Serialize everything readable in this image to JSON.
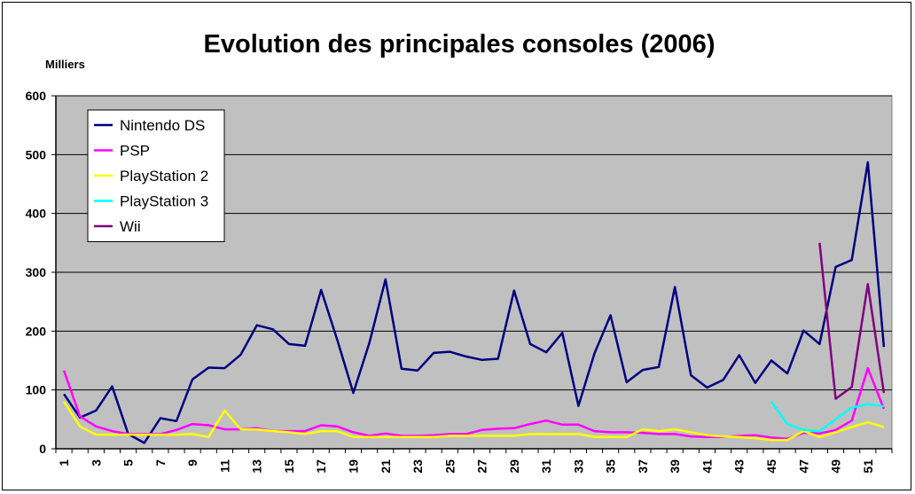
{
  "chart_data": {
    "type": "line",
    "title": "Evolution des principales consoles (2006)",
    "ylabel": "Milliers",
    "xlabel": "",
    "ylim": [
      0,
      600
    ],
    "yticks": [
      0,
      100,
      200,
      300,
      400,
      500,
      600
    ],
    "xticks": [
      "1",
      "3",
      "5",
      "7",
      "9",
      "11",
      "13",
      "15",
      "17",
      "19",
      "21",
      "23",
      "25",
      "27",
      "29",
      "31",
      "33",
      "35",
      "37",
      "39",
      "41",
      "43",
      "45",
      "47",
      "49",
      "51"
    ],
    "x_range": [
      1,
      52
    ],
    "grid": true,
    "plot_background": "#c0c0c0",
    "legend_position": "top-left",
    "series": [
      {
        "name": "Nintendo DS",
        "color": "#000080",
        "x": [
          1,
          2,
          3,
          4,
          5,
          6,
          7,
          8,
          9,
          10,
          11,
          12,
          13,
          14,
          15,
          16,
          17,
          18,
          19,
          20,
          21,
          22,
          23,
          24,
          25,
          26,
          27,
          28,
          29,
          30,
          31,
          32,
          33,
          34,
          35,
          36,
          37,
          38,
          39,
          40,
          41,
          42,
          43,
          44,
          45,
          46,
          47,
          48,
          49,
          50,
          51,
          52
        ],
        "values": [
          93,
          53,
          65,
          106,
          25,
          10,
          52,
          47,
          118,
          138,
          137,
          160,
          210,
          203,
          178,
          175,
          270,
          185,
          95,
          180,
          288,
          136,
          133,
          163,
          165,
          157,
          151,
          153,
          269,
          178,
          164,
          197,
          73,
          162,
          227,
          113,
          134,
          139,
          275,
          125,
          104,
          117,
          159,
          112,
          150,
          128,
          201,
          178,
          309,
          321,
          487,
          173
        ]
      },
      {
        "name": "PSP",
        "color": "#ff00ff",
        "x": [
          1,
          2,
          3,
          4,
          5,
          6,
          7,
          8,
          9,
          10,
          11,
          12,
          13,
          14,
          15,
          16,
          17,
          18,
          19,
          20,
          21,
          22,
          23,
          24,
          25,
          26,
          27,
          28,
          29,
          30,
          31,
          32,
          33,
          34,
          35,
          36,
          37,
          38,
          39,
          40,
          41,
          42,
          43,
          44,
          45,
          46,
          47,
          48,
          49,
          50,
          51,
          52
        ],
        "values": [
          133,
          55,
          38,
          30,
          25,
          25,
          25,
          32,
          42,
          40,
          33,
          33,
          35,
          30,
          30,
          30,
          40,
          38,
          28,
          22,
          26,
          22,
          22,
          23,
          25,
          25,
          32,
          34,
          35,
          42,
          48,
          41,
          41,
          30,
          28,
          28,
          27,
          25,
          25,
          21,
          20,
          20,
          22,
          23,
          19,
          17,
          27,
          26,
          32,
          48,
          137,
          68
        ]
      },
      {
        "name": "PlayStation 2",
        "color": "#ffff00",
        "x": [
          1,
          2,
          3,
          4,
          5,
          6,
          7,
          8,
          9,
          10,
          11,
          12,
          13,
          14,
          15,
          16,
          17,
          18,
          19,
          20,
          21,
          22,
          23,
          24,
          25,
          26,
          27,
          28,
          29,
          30,
          31,
          32,
          33,
          34,
          35,
          36,
          37,
          38,
          39,
          40,
          41,
          42,
          43,
          44,
          45,
          46,
          47,
          48,
          49,
          50,
          51,
          52
        ],
        "values": [
          80,
          38,
          24,
          24,
          24,
          24,
          24,
          24,
          25,
          20,
          65,
          33,
          33,
          30,
          28,
          25,
          30,
          30,
          20,
          20,
          20,
          20,
          20,
          20,
          22,
          22,
          22,
          22,
          22,
          25,
          25,
          25,
          25,
          20,
          20,
          20,
          33,
          30,
          33,
          28,
          23,
          21,
          20,
          18,
          15,
          15,
          30,
          20,
          28,
          37,
          45,
          37
        ]
      },
      {
        "name": "PlayStation 3",
        "color": "#00ffff",
        "x": [
          45,
          46,
          47,
          48,
          49,
          50,
          51,
          52
        ],
        "values": [
          80,
          42,
          32,
          30,
          50,
          70,
          76,
          72
        ]
      },
      {
        "name": "Wii",
        "color": "#800080",
        "x": [
          48,
          49,
          50,
          51,
          52
        ],
        "values": [
          350,
          85,
          105,
          280,
          95
        ]
      }
    ]
  }
}
